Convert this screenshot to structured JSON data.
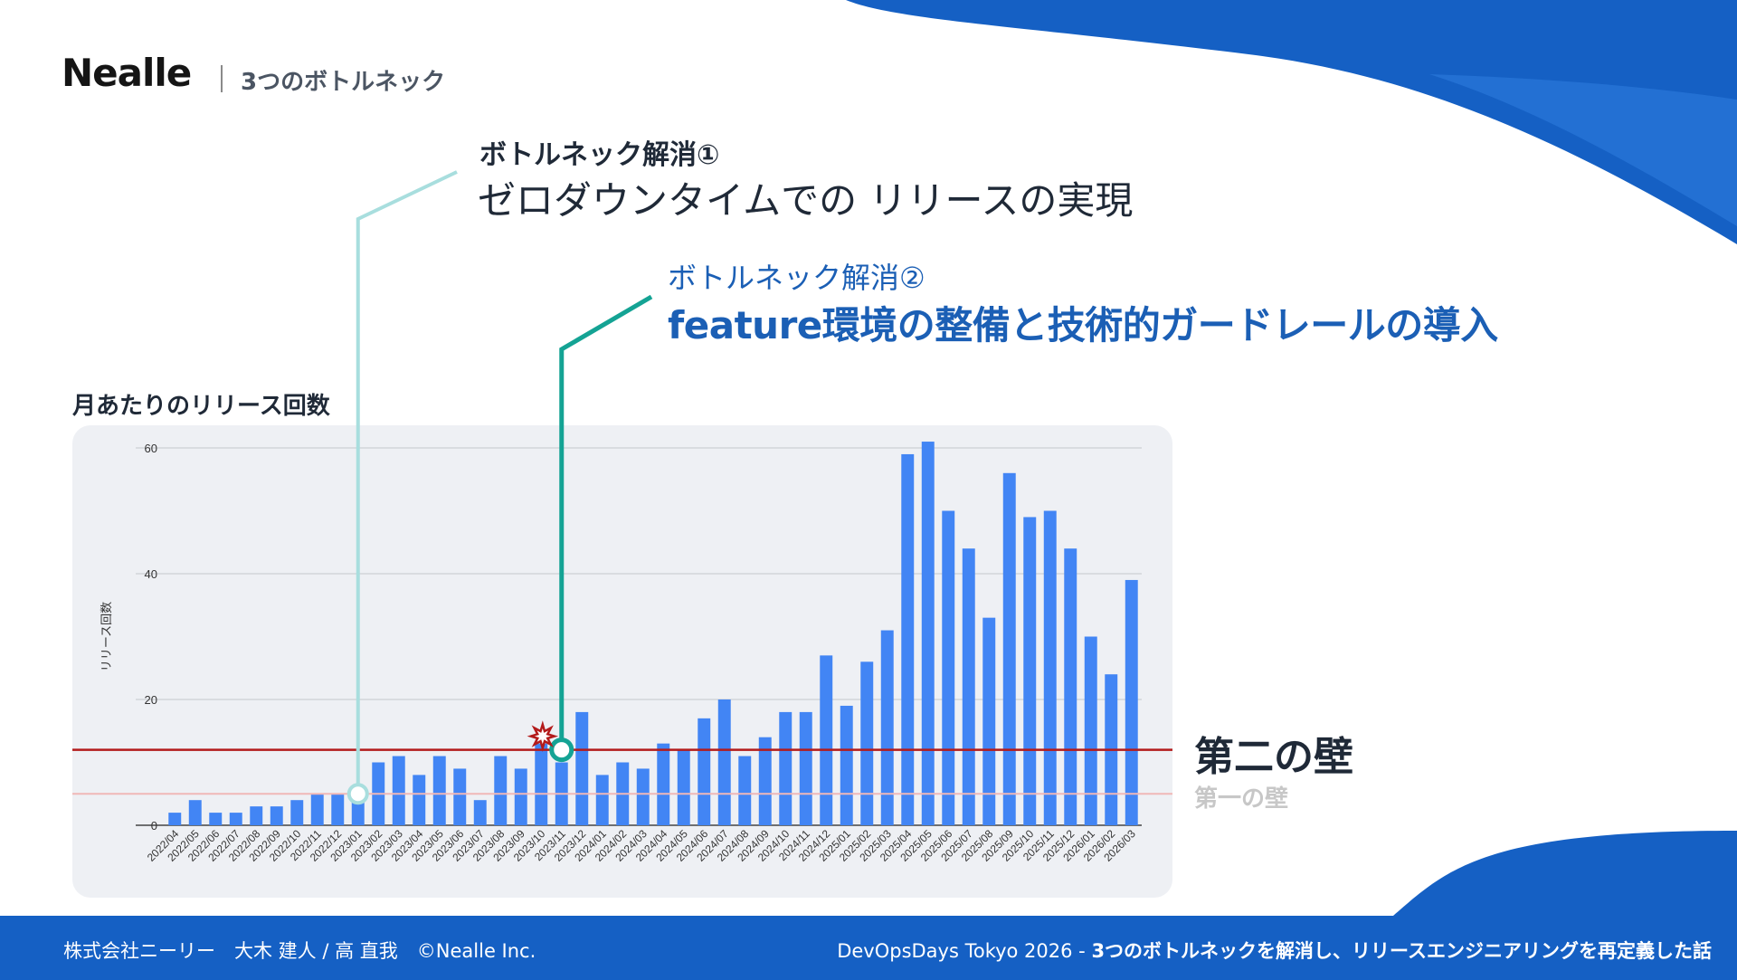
{
  "header": {
    "logo": "Nealle",
    "section": "3つのボトルネック"
  },
  "bottleneck1": {
    "heading": "ボトルネック解消①",
    "title": "ゼロダウンタイムでの リリースの実現"
  },
  "bottleneck2": {
    "heading": "ボトルネック解消②",
    "title": "feature環境の整備と技術的ガードレールの導入"
  },
  "walls": {
    "second": "第二の壁",
    "first": "第一の壁"
  },
  "footer": {
    "left": "株式会社ニーリー　大木 建人 / 高 直我　©Nealle Inc.",
    "event": "DevOpsDays Tokyo 2026 - ",
    "talk": "3つのボトルネックを解消し、リリースエンジニアリングを再定義した話"
  },
  "colors": {
    "bar": "#4285f4",
    "wall2": "#b31b1b",
    "wall1": "#f0b7b7",
    "marker1": "#a8dede",
    "marker2": "#14a394",
    "brand": "#1560c4"
  },
  "chart_data": {
    "type": "bar",
    "title": "月あたりのリリース回数",
    "xlabel": "",
    "ylabel": "リリース回数",
    "ylim": [
      0,
      60
    ],
    "yticks": [
      0,
      20,
      40,
      60
    ],
    "grid": true,
    "categories": [
      "2022/04",
      "2022/05",
      "2022/06",
      "2022/07",
      "2022/08",
      "2022/09",
      "2022/10",
      "2022/11",
      "2022/12",
      "2023/01",
      "2023/02",
      "2023/03",
      "2023/04",
      "2023/05",
      "2023/06",
      "2023/07",
      "2023/08",
      "2023/09",
      "2023/10",
      "2023/11",
      "2023/12",
      "2024/01",
      "2024/02",
      "2024/03",
      "2024/04",
      "2024/05",
      "2024/06",
      "2024/07",
      "2024/08",
      "2024/09",
      "2024/10",
      "2024/11",
      "2024/12",
      "2025/01",
      "2025/02",
      "2025/03",
      "2025/04",
      "2025/05",
      "2025/06",
      "2025/07",
      "2025/08",
      "2025/09",
      "2025/10",
      "2025/11",
      "2025/12",
      "2026/01",
      "2026/02",
      "2026/03"
    ],
    "values": [
      2,
      4,
      2,
      2,
      3,
      3,
      4,
      5,
      5,
      4,
      10,
      11,
      8,
      11,
      9,
      4,
      11,
      9,
      13,
      10,
      18,
      8,
      10,
      9,
      13,
      12,
      17,
      20,
      11,
      14,
      18,
      18,
      27,
      19,
      26,
      31,
      59,
      61,
      50,
      44,
      33,
      56,
      49,
      50,
      44,
      30,
      24,
      39
    ],
    "reference_lines": [
      {
        "name": "第一の壁",
        "value": 5
      },
      {
        "name": "第二の壁",
        "value": 12
      }
    ],
    "markers": [
      {
        "name": "ボトルネック解消①",
        "category": "2023/01",
        "value": 5
      },
      {
        "name": "ボトルネック解消②",
        "category": "2023/11",
        "value": 12
      }
    ]
  }
}
